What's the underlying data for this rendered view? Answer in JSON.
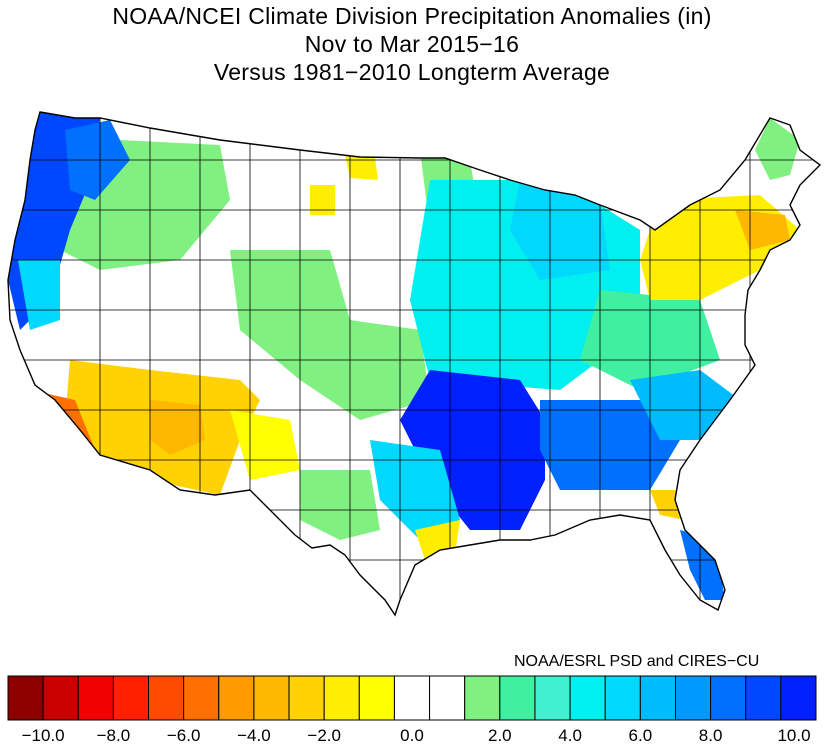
{
  "header": {
    "title_line1": "NOAA/NCEI Climate Division Precipitation Anomalies (in)",
    "title_line2": "Nov to Mar 2015−16",
    "title_line3": "Versus 1981−2010 Longterm Average"
  },
  "credit": "NOAA/ESRL PSD and CIRES−CU",
  "colorbar": {
    "colors": [
      "#8c0000",
      "#c80000",
      "#f00000",
      "#ff2000",
      "#ff4a00",
      "#ff7000",
      "#ff9a00",
      "#ffb800",
      "#ffd200",
      "#ffee00",
      "#ffff00",
      "#ffffff",
      "#ffffff",
      "#80f080",
      "#40f0a0",
      "#40f0d0",
      "#00f0f0",
      "#00d8ff",
      "#00bcff",
      "#0099ff",
      "#0070ff",
      "#0048ff",
      "#0020ff"
    ],
    "tick_labels": [
      "−10.0",
      "−8.0",
      "−6.0",
      "−4.0",
      "−2.0",
      "0.0",
      "2.0",
      "4.0",
      "6.0",
      "8.0",
      "10.0"
    ]
  },
  "map": {
    "description_regions": [
      {
        "region": "pacific-northwest-coast",
        "anomaly_class": "8 to 10"
      },
      {
        "region": "northern-rockies",
        "anomaly_class": "0.5 to 2"
      },
      {
        "region": "southwest-arizona",
        "anomaly_class": "-2 to -4"
      },
      {
        "region": "southern-california-coast",
        "anomaly_class": "-4 to -6"
      },
      {
        "region": "lower-mississippi-valley",
        "anomaly_class": "8 to 10"
      },
      {
        "region": "ohio-valley-midwest",
        "anomaly_class": "2 to 6"
      },
      {
        "region": "northeast",
        "anomaly_class": "-1 to -3"
      },
      {
        "region": "florida-south",
        "anomaly_class": "6 to 8"
      }
    ]
  }
}
